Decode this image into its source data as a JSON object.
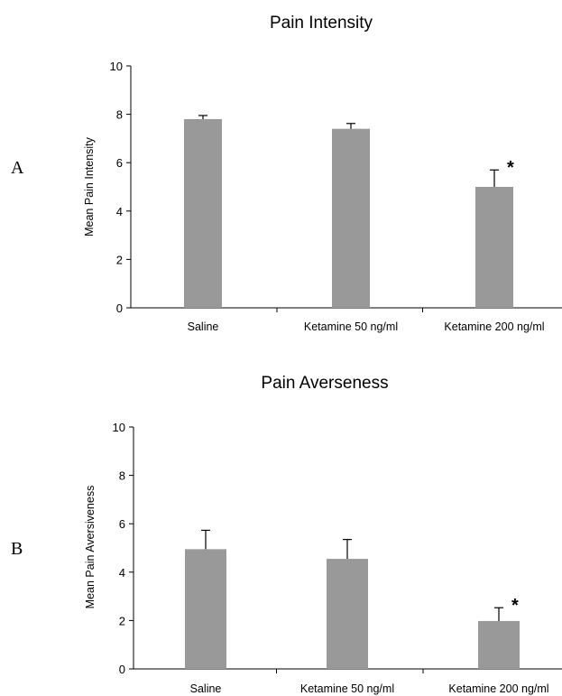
{
  "chart_data": [
    {
      "type": "bar",
      "panel_label": "A",
      "title": "Pain Intensity",
      "ylabel": "Mean Pain Intensity",
      "ylim": [
        0,
        10
      ],
      "yticks": [
        0,
        2,
        4,
        6,
        8,
        10
      ],
      "categories": [
        "Saline",
        "Ketamine 50 ng/ml",
        "Ketamine 200 ng/ml"
      ],
      "values": [
        7.8,
        7.4,
        5.0
      ],
      "errors": [
        0.15,
        0.22,
        0.7
      ],
      "significance": [
        "",
        "",
        "*"
      ],
      "bar_color": "#999999"
    },
    {
      "type": "bar",
      "panel_label": "B",
      "title": "Pain Averseness",
      "ylabel": "Mean Pain Aversiveness",
      "ylim": [
        0,
        10
      ],
      "yticks": [
        0,
        2,
        4,
        6,
        8,
        10
      ],
      "categories": [
        "Saline",
        "Ketamine 50 ng/ml",
        "Ketamine 200 ng/ml"
      ],
      "values": [
        4.95,
        4.55,
        1.98
      ],
      "errors": [
        0.78,
        0.8,
        0.55
      ],
      "significance": [
        "",
        "",
        "*"
      ],
      "bar_color": "#999999"
    }
  ]
}
